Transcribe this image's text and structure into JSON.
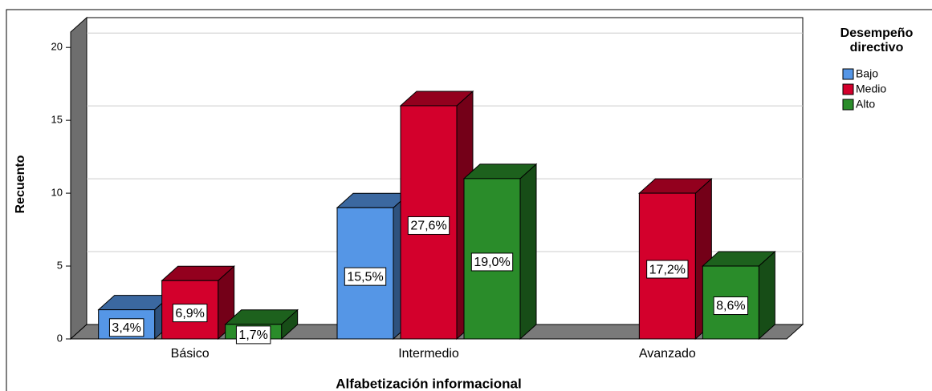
{
  "chart_data": {
    "type": "bar3d",
    "x_label": "Alfabetización informacional",
    "y_label": "Recuento",
    "legend_title": "Desempeño directivo",
    "legend_position": "right",
    "grid": true,
    "categories": [
      "Básico",
      "Intermedio",
      "Avanzado"
    ],
    "ylim": [
      0,
      21
    ],
    "yticks": [
      0,
      5,
      10,
      15,
      20
    ],
    "series": [
      {
        "name": "Bajo",
        "color": "#5596e6",
        "values": [
          2,
          9,
          null
        ],
        "percents": [
          3.4,
          15.5,
          null
        ],
        "percent_labels": [
          "3,4%",
          "15,5%",
          null
        ]
      },
      {
        "name": "Medio",
        "color": "#d3002c",
        "values": [
          4,
          16,
          10
        ],
        "percents": [
          6.9,
          27.6,
          17.2
        ],
        "percent_labels": [
          "6,9%",
          "27,6%",
          "17,2%"
        ]
      },
      {
        "name": "Alto",
        "color": "#2a8c2a",
        "values": [
          1,
          11,
          5
        ],
        "percents": [
          1.7,
          19.0,
          8.6
        ],
        "percent_labels": [
          "1,7%",
          "19,0%",
          "8,6%"
        ]
      }
    ]
  }
}
